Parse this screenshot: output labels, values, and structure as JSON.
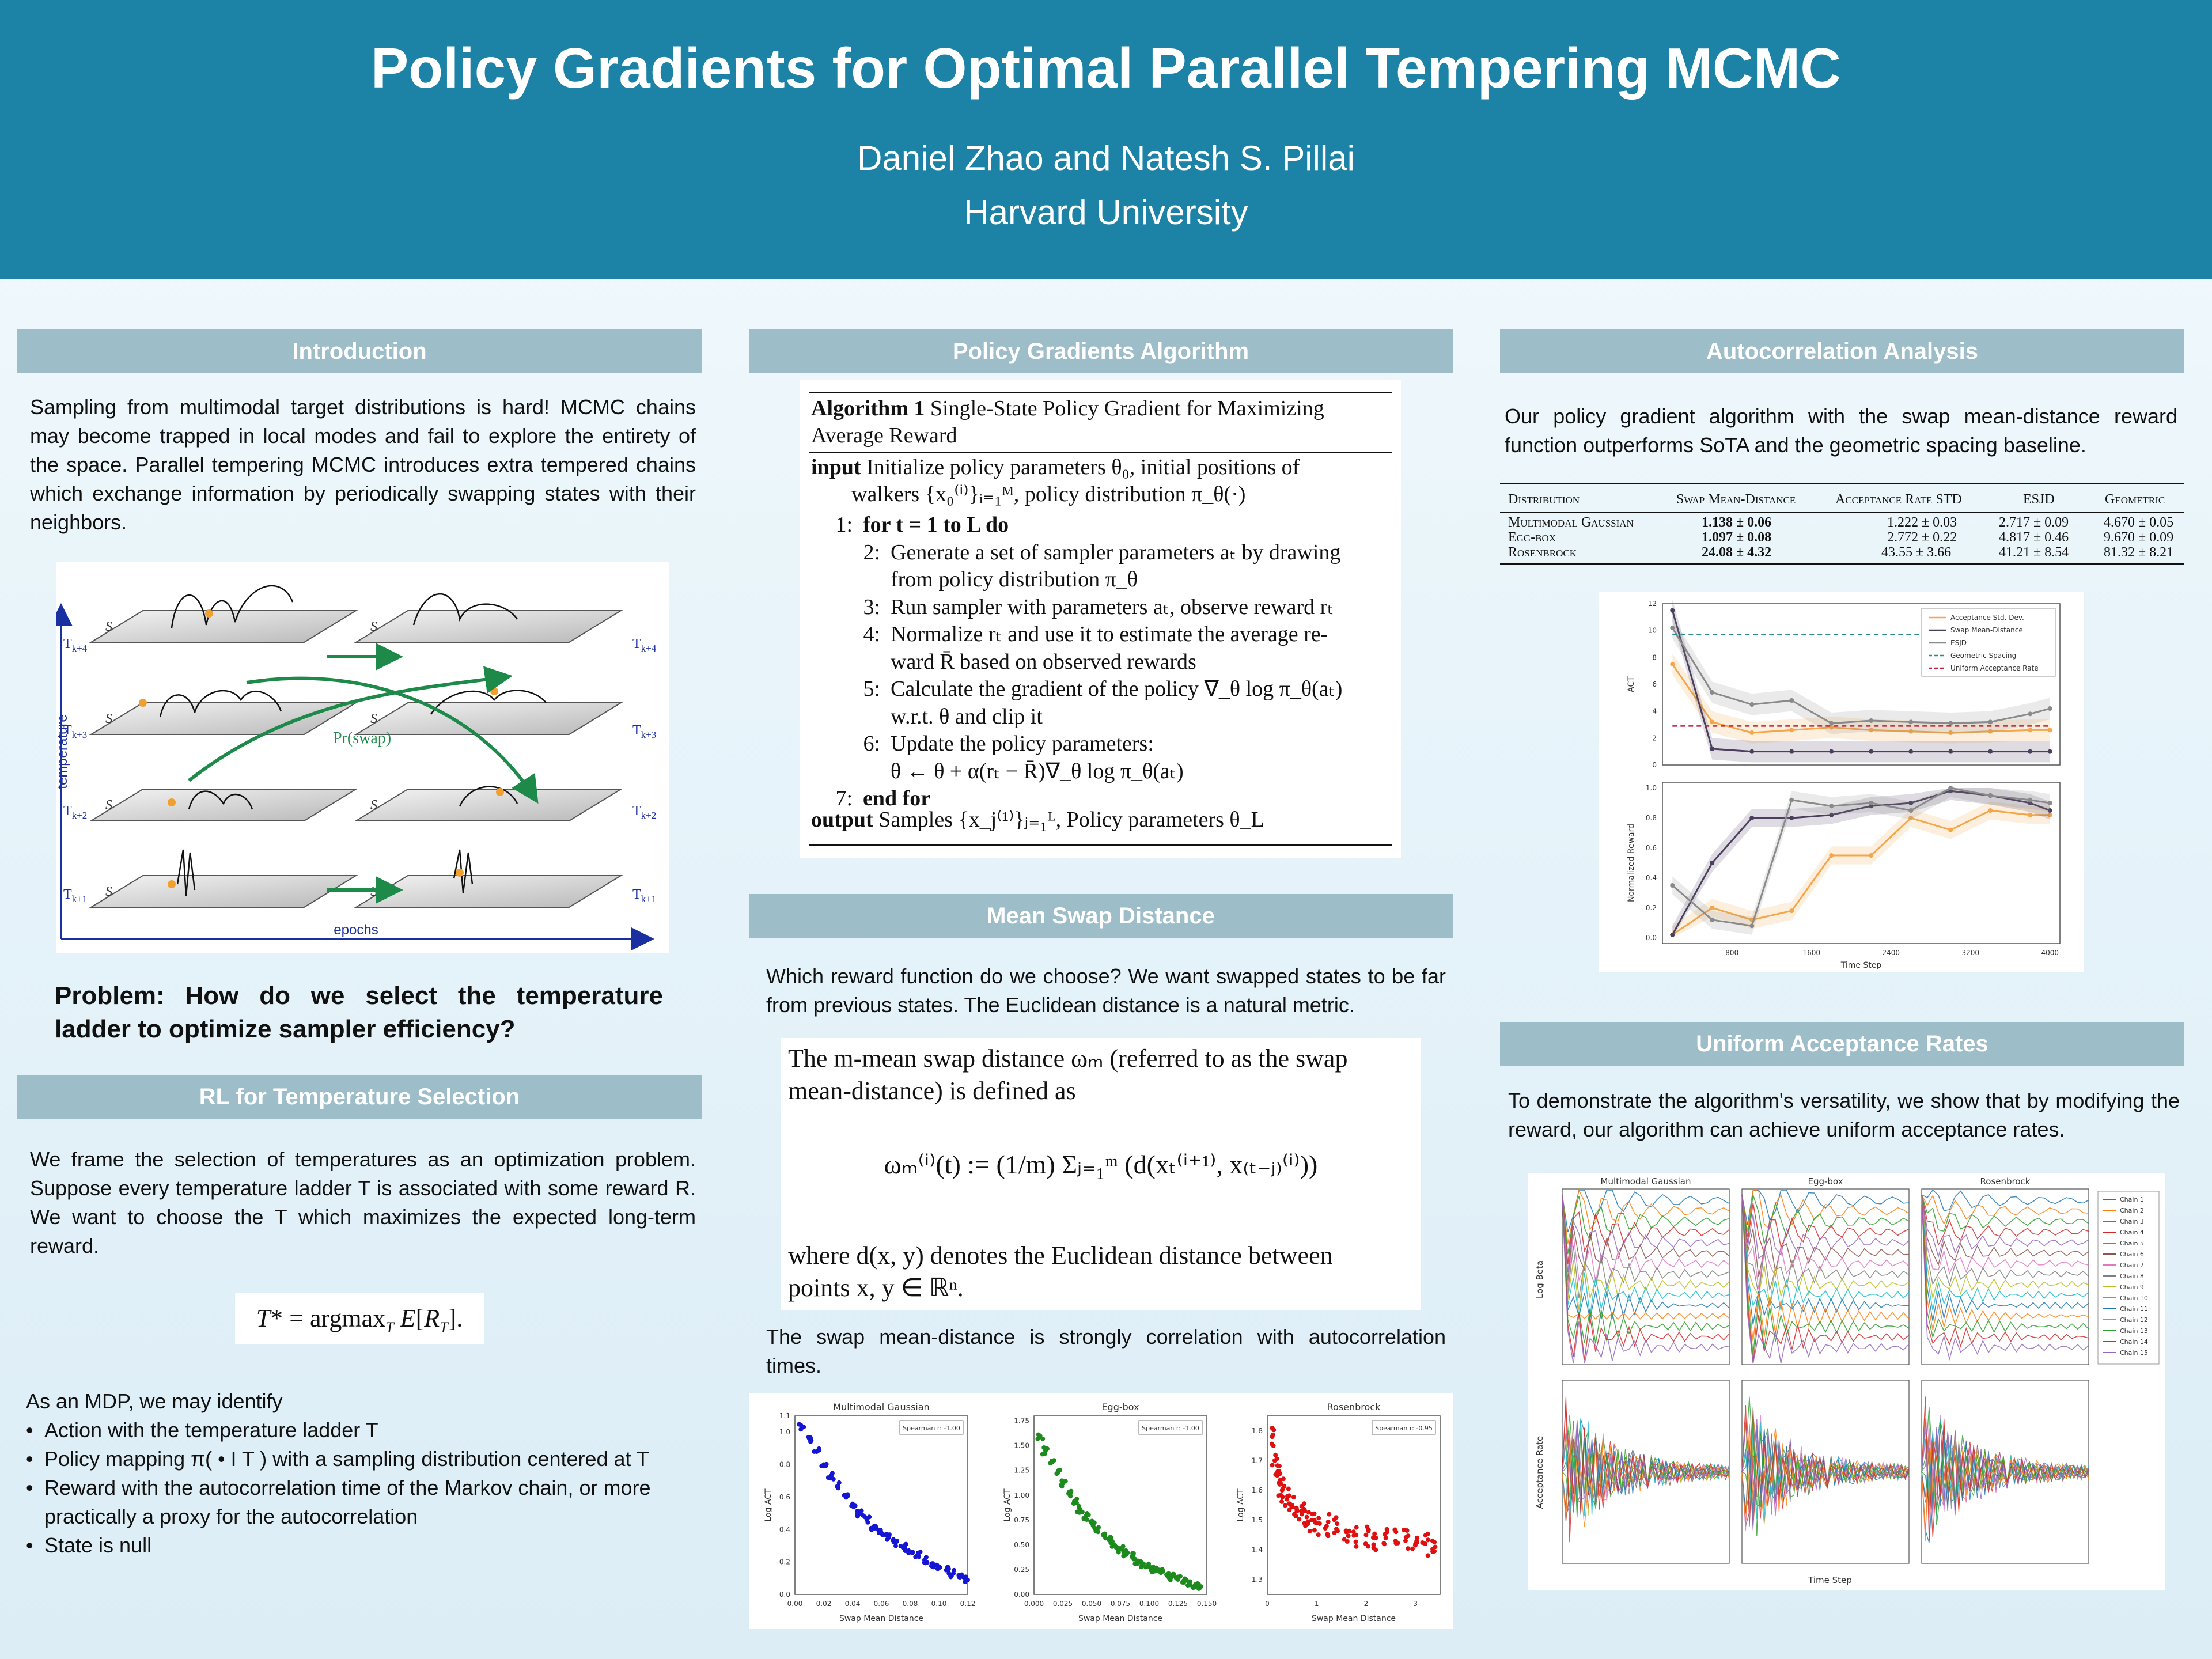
{
  "header": {
    "title": "Policy Gradients for Optimal Parallel Tempering MCMC",
    "authors": "Daniel Zhao and Natesh S. Pillai",
    "affiliation": "Harvard University"
  },
  "colors": {
    "banner": "#1c82a6",
    "section_header": "#9dbdc9",
    "blue_points": "#1515d4",
    "green_points": "#1d8a1d",
    "red_points": "#e01010"
  },
  "sections": {
    "introduction": {
      "heading": "Introduction",
      "body": "Sampling from multimodal target distributions is hard! MCMC chains may become trapped in local modes and fail to explore the entirety of the space. Parallel tempering MCMC introduces extra tempered chains which exchange information by periodically swapping states with their neighbors.",
      "figure": {
        "temperature_label": "temperature",
        "epochs_label": "epochs",
        "swap_label": "Pr(swap)",
        "levels": [
          "T",
          "T",
          "T",
          "T"
        ],
        "level_subs": [
          "k+4",
          "k+3",
          "k+2",
          "k+1"
        ],
        "plane_label": "S"
      },
      "problem": "Problem: How do we select the temperature ladder to optimize sampler efficiency?"
    },
    "rl": {
      "heading": "RL for Temperature Selection",
      "body": "We frame the selection of temperatures as an optimization problem. Suppose every temperature ladder T is associated with some reward R. We want to choose the T which maximizes the expected long-term reward.",
      "equation": "T* = argmaxT E[RT].",
      "mdp_intro": "As an MDP, we may identify",
      "mdp_items": [
        "Action with the temperature ladder T",
        "Policy mapping π( • I T ) with a sampling distribution centered at T",
        "Reward with the autocorrelation time of the Markov chain, or more practically a proxy for the autocorrelation",
        "State is null"
      ]
    },
    "algorithm": {
      "heading": "Policy Gradients Algorithm",
      "title_bold": "Algorithm 1",
      "title_rest": "Single-State Policy Gradient for Maximizing",
      "title_rest2": "Average Reward",
      "input_kw": "input",
      "input_text": "Initialize policy parameters θ₀, initial positions of",
      "input_text2": "walkers {x₀⁽ⁱ⁾}ᵢ₌₁ᴹ, policy distribution π_θ(·)",
      "lines": [
        {
          "n": "1:",
          "t": "for t = 1 to L do"
        },
        {
          "n": "2:",
          "t": "Generate a set of sampler parameters aₜ by drawing"
        },
        {
          "n": "",
          "t": "from policy distribution π_θ"
        },
        {
          "n": "3:",
          "t": "Run sampler with parameters aₜ, observe reward rₜ"
        },
        {
          "n": "4:",
          "t": "Normalize rₜ and use it to estimate the average re-"
        },
        {
          "n": "",
          "t": "ward R̄ based on observed rewards"
        },
        {
          "n": "5:",
          "t": "Calculate the gradient of the policy ∇_θ log π_θ(aₜ)"
        },
        {
          "n": "",
          "t": "w.r.t. θ and clip it"
        },
        {
          "n": "6:",
          "t": "Update the policy parameters:"
        },
        {
          "n": "",
          "t": "θ ← θ + α(rₜ − R̄)∇_θ log π_θ(aₜ)"
        },
        {
          "n": "7:",
          "t": "end for"
        }
      ],
      "output_kw": "output",
      "output_text": "Samples {x_j⁽¹⁾}ⱼ₌₁ᴸ, Policy parameters θ_L"
    },
    "mean_swap": {
      "heading": "Mean Swap Distance",
      "body": "Which reward function do we choose? We want swapped states to be far from previous states. The Euclidean distance is a natural metric.",
      "def_line1": "The m-mean swap distance ωₘ (referred to as the swap",
      "def_line2": "mean-distance) is defined as",
      "formula": "ωₘ⁽ⁱ⁾(t) := (1/m) Σⱼ₌₁ᵐ (d(xₜ⁽ⁱ⁺¹⁾, x₍ₜ₋ⱼ₎⁽ⁱ⁾))",
      "where_line1": "where d(x, y) denotes the Euclidean distance between",
      "where_line2": "points x, y ∈ ℝⁿ.",
      "body2": "The swap mean-distance is strongly correlation with autocorrelation times."
    },
    "autocorr": {
      "heading": "Autocorrelation Analysis",
      "body": "Our policy gradient algorithm with the swap mean-distance reward function outperforms SoTA and the geometric spacing baseline."
    },
    "uniform": {
      "heading": "Uniform Acceptance Rates",
      "body": "To demonstrate the algorithm's versatility, we show that by modifying the reward, our algorithm can achieve uniform acceptance rates."
    }
  },
  "table": {
    "headers": [
      "Distribution",
      "Swap Mean-Distance",
      "Acceptance Rate STD",
      "ESJD",
      "Geometric"
    ],
    "rows": [
      [
        "Multimodal Gaussian",
        "1.138 ± 0.06",
        "1.222 ± 0.03",
        "2.717 ± 0.09",
        "4.670 ± 0.05"
      ],
      [
        "Egg-box",
        "1.097 ± 0.08",
        "2.772 ± 0.22",
        "4.817 ± 0.46",
        "9.670 ± 0.09"
      ],
      [
        "Rosenbrock",
        "24.08 ± 4.32",
        "43.55 ± 3.66",
        "41.21 ± 8.54",
        "81.32 ± 8.21"
      ]
    ]
  },
  "chart_data": [
    {
      "type": "scatter",
      "title": "Multimodal Gaussian",
      "xlabel": "Swap Mean Distance",
      "ylabel": "Log ACT",
      "annotation": "Spearman r: -1.00",
      "xlim": [
        0.0,
        0.12
      ],
      "ylim": [
        0.0,
        1.1
      ],
      "xticks": [
        "0.00",
        "0.02",
        "0.04",
        "0.06",
        "0.08",
        "0.10",
        "0.12"
      ],
      "yticks": [
        "0.0",
        "0.2",
        "0.4",
        "0.6",
        "0.8",
        "1.0"
      ],
      "y_top_tick": "1.1",
      "x": [
        0.005,
        0.01,
        0.015,
        0.02,
        0.025,
        0.03,
        0.035,
        0.04,
        0.045,
        0.05,
        0.055,
        0.06,
        0.065,
        0.07,
        0.075,
        0.08,
        0.085,
        0.09,
        0.095,
        0.1,
        0.105,
        0.11,
        0.115,
        0.12
      ],
      "y": [
        1.03,
        0.96,
        0.88,
        0.8,
        0.73,
        0.67,
        0.61,
        0.55,
        0.5,
        0.46,
        0.42,
        0.38,
        0.35,
        0.32,
        0.29,
        0.26,
        0.24,
        0.21,
        0.19,
        0.17,
        0.15,
        0.13,
        0.11,
        0.09
      ],
      "color": "#1515d4"
    },
    {
      "type": "scatter",
      "title": "Egg-box",
      "xlabel": "Swap Mean Distance",
      "ylabel": "Log ACT",
      "annotation": "Spearman r: -1.00",
      "xlim": [
        0.0,
        0.15
      ],
      "ylim": [
        0.0,
        1.8
      ],
      "xticks": [
        "0.000",
        "0.025",
        "0.050",
        "0.075",
        "0.100",
        "0.125",
        "0.150"
      ],
      "yticks": [
        "0.00",
        "0.25",
        "0.50",
        "0.75",
        "1.00",
        "1.25",
        "1.50",
        "1.75"
      ],
      "x": [
        0.005,
        0.01,
        0.015,
        0.02,
        0.025,
        0.03,
        0.035,
        0.04,
        0.045,
        0.05,
        0.055,
        0.06,
        0.065,
        0.07,
        0.075,
        0.08,
        0.085,
        0.09,
        0.095,
        0.1,
        0.105,
        0.11,
        0.115,
        0.12,
        0.125,
        0.13,
        0.135,
        0.14,
        0.145
      ],
      "y": [
        1.6,
        1.45,
        1.33,
        1.22,
        1.12,
        1.02,
        0.94,
        0.86,
        0.79,
        0.72,
        0.66,
        0.6,
        0.55,
        0.5,
        0.46,
        0.42,
        0.38,
        0.34,
        0.31,
        0.28,
        0.25,
        0.22,
        0.2,
        0.18,
        0.16,
        0.14,
        0.12,
        0.1,
        0.08
      ],
      "color": "#1d8a1d"
    },
    {
      "type": "scatter",
      "title": "Rosenbrock",
      "xlabel": "Swap Mean Distance",
      "ylabel": "Log ACT",
      "annotation": "Spearman r: -0.95",
      "xlim": [
        0,
        3.5
      ],
      "ylim": [
        1.25,
        1.85
      ],
      "xticks": [
        "0",
        "1",
        "2",
        "3"
      ],
      "yticks": [
        "1.3",
        "1.4",
        "1.5",
        "1.6",
        "1.7",
        "1.8"
      ],
      "x": [
        0.1,
        0.15,
        0.2,
        0.25,
        0.3,
        0.4,
        0.5,
        0.6,
        0.7,
        0.8,
        0.9,
        1.0,
        1.2,
        1.4,
        1.6,
        1.8,
        2.0,
        2.2,
        2.4,
        2.6,
        2.8,
        3.0,
        3.2,
        3.4
      ],
      "y": [
        1.78,
        1.7,
        1.65,
        1.62,
        1.6,
        1.57,
        1.55,
        1.53,
        1.52,
        1.51,
        1.5,
        1.49,
        1.48,
        1.47,
        1.46,
        1.45,
        1.45,
        1.44,
        1.44,
        1.43,
        1.43,
        1.42,
        1.42,
        1.41
      ],
      "color": "#e01010"
    },
    {
      "type": "line",
      "ylabel": "ACT",
      "ylim": [
        0,
        12
      ],
      "yticks": [
        "0",
        "2",
        "4",
        "6",
        "8",
        "10",
        "12"
      ],
      "x": [
        200,
        600,
        1000,
        1400,
        1800,
        2200,
        2600,
        3000,
        3400,
        3800,
        4000
      ],
      "legend": [
        "Acceptance Std. Dev.",
        "Swap Mean-Distance",
        "ESJD",
        "Geometric Spacing",
        "Uniform Acceptance Rate"
      ],
      "series": [
        {
          "name": "Acceptance Std. Dev.",
          "values": [
            7.5,
            3.2,
            2.4,
            2.6,
            2.8,
            2.6,
            2.5,
            2.4,
            2.5,
            2.6,
            2.6
          ],
          "color": "#f5a64a"
        },
        {
          "name": "Swap Mean-Distance",
          "values": [
            11.5,
            1.2,
            1.0,
            1.0,
            1.0,
            1.0,
            1.0,
            1.0,
            1.0,
            1.0,
            1.0
          ],
          "color": "#4a3f5c"
        },
        {
          "name": "ESJD",
          "values": [
            10.2,
            5.4,
            4.5,
            4.8,
            3.1,
            3.3,
            3.2,
            3.1,
            3.2,
            3.8,
            4.2
          ],
          "color": "#8a8a8a"
        },
        {
          "name": "Geometric Spacing",
          "values": [
            9.7,
            9.7,
            9.7,
            9.7,
            9.7,
            9.7,
            9.7,
            9.7,
            9.7,
            9.7,
            9.7
          ],
          "color": "#2a8a8a"
        },
        {
          "name": "Uniform Acceptance Rate",
          "values": [
            2.9,
            2.9,
            2.9,
            2.9,
            2.9,
            2.9,
            2.9,
            2.9,
            2.9,
            2.9,
            2.9
          ],
          "color": "#c01c3c"
        }
      ]
    },
    {
      "type": "line",
      "xlabel": "Time Step",
      "ylabel": "Normalized Reward",
      "xticks": [
        "800",
        "1600",
        "2400",
        "3200",
        "4000"
      ],
      "yticks": [
        "0.0",
        "0.2",
        "0.4",
        "0.6",
        "0.8",
        "1.0"
      ],
      "x": [
        200,
        600,
        1000,
        1400,
        1800,
        2200,
        2600,
        3000,
        3400,
        3800,
        4000
      ],
      "ylim": [
        0,
        1
      ],
      "series": [
        {
          "name": "Acceptance Std. Dev.",
          "values": [
            0.02,
            0.2,
            0.12,
            0.18,
            0.55,
            0.55,
            0.8,
            0.72,
            0.85,
            0.82,
            0.82
          ],
          "color": "#f5a64a"
        },
        {
          "name": "Swap Mean-Distance",
          "values": [
            0.02,
            0.5,
            0.8,
            0.8,
            0.82,
            0.88,
            0.9,
            0.98,
            0.95,
            0.9,
            0.85
          ],
          "color": "#4a3f5c"
        },
        {
          "name": "ESJD",
          "values": [
            0.35,
            0.12,
            0.08,
            0.92,
            0.88,
            0.9,
            0.85,
            1.0,
            0.95,
            0.92,
            0.9
          ],
          "color": "#8a8a8a"
        }
      ]
    },
    {
      "type": "line",
      "titles": [
        "Multimodal Gaussian",
        "Egg-box",
        "Rosenbrock"
      ],
      "ylabels": [
        "Log Beta",
        "Acceptance Rate"
      ],
      "xlabel": "Time Step",
      "legend": [
        "Chain 1",
        "Chain 2",
        "Chain 3",
        "Chain 4",
        "Chain 5",
        "Chain 6",
        "Chain 7",
        "Chain 8",
        "Chain 9",
        "Chain 10",
        "Chain 11",
        "Chain 12",
        "Chain 13",
        "Chain 14",
        "Chain 15"
      ]
    }
  ]
}
